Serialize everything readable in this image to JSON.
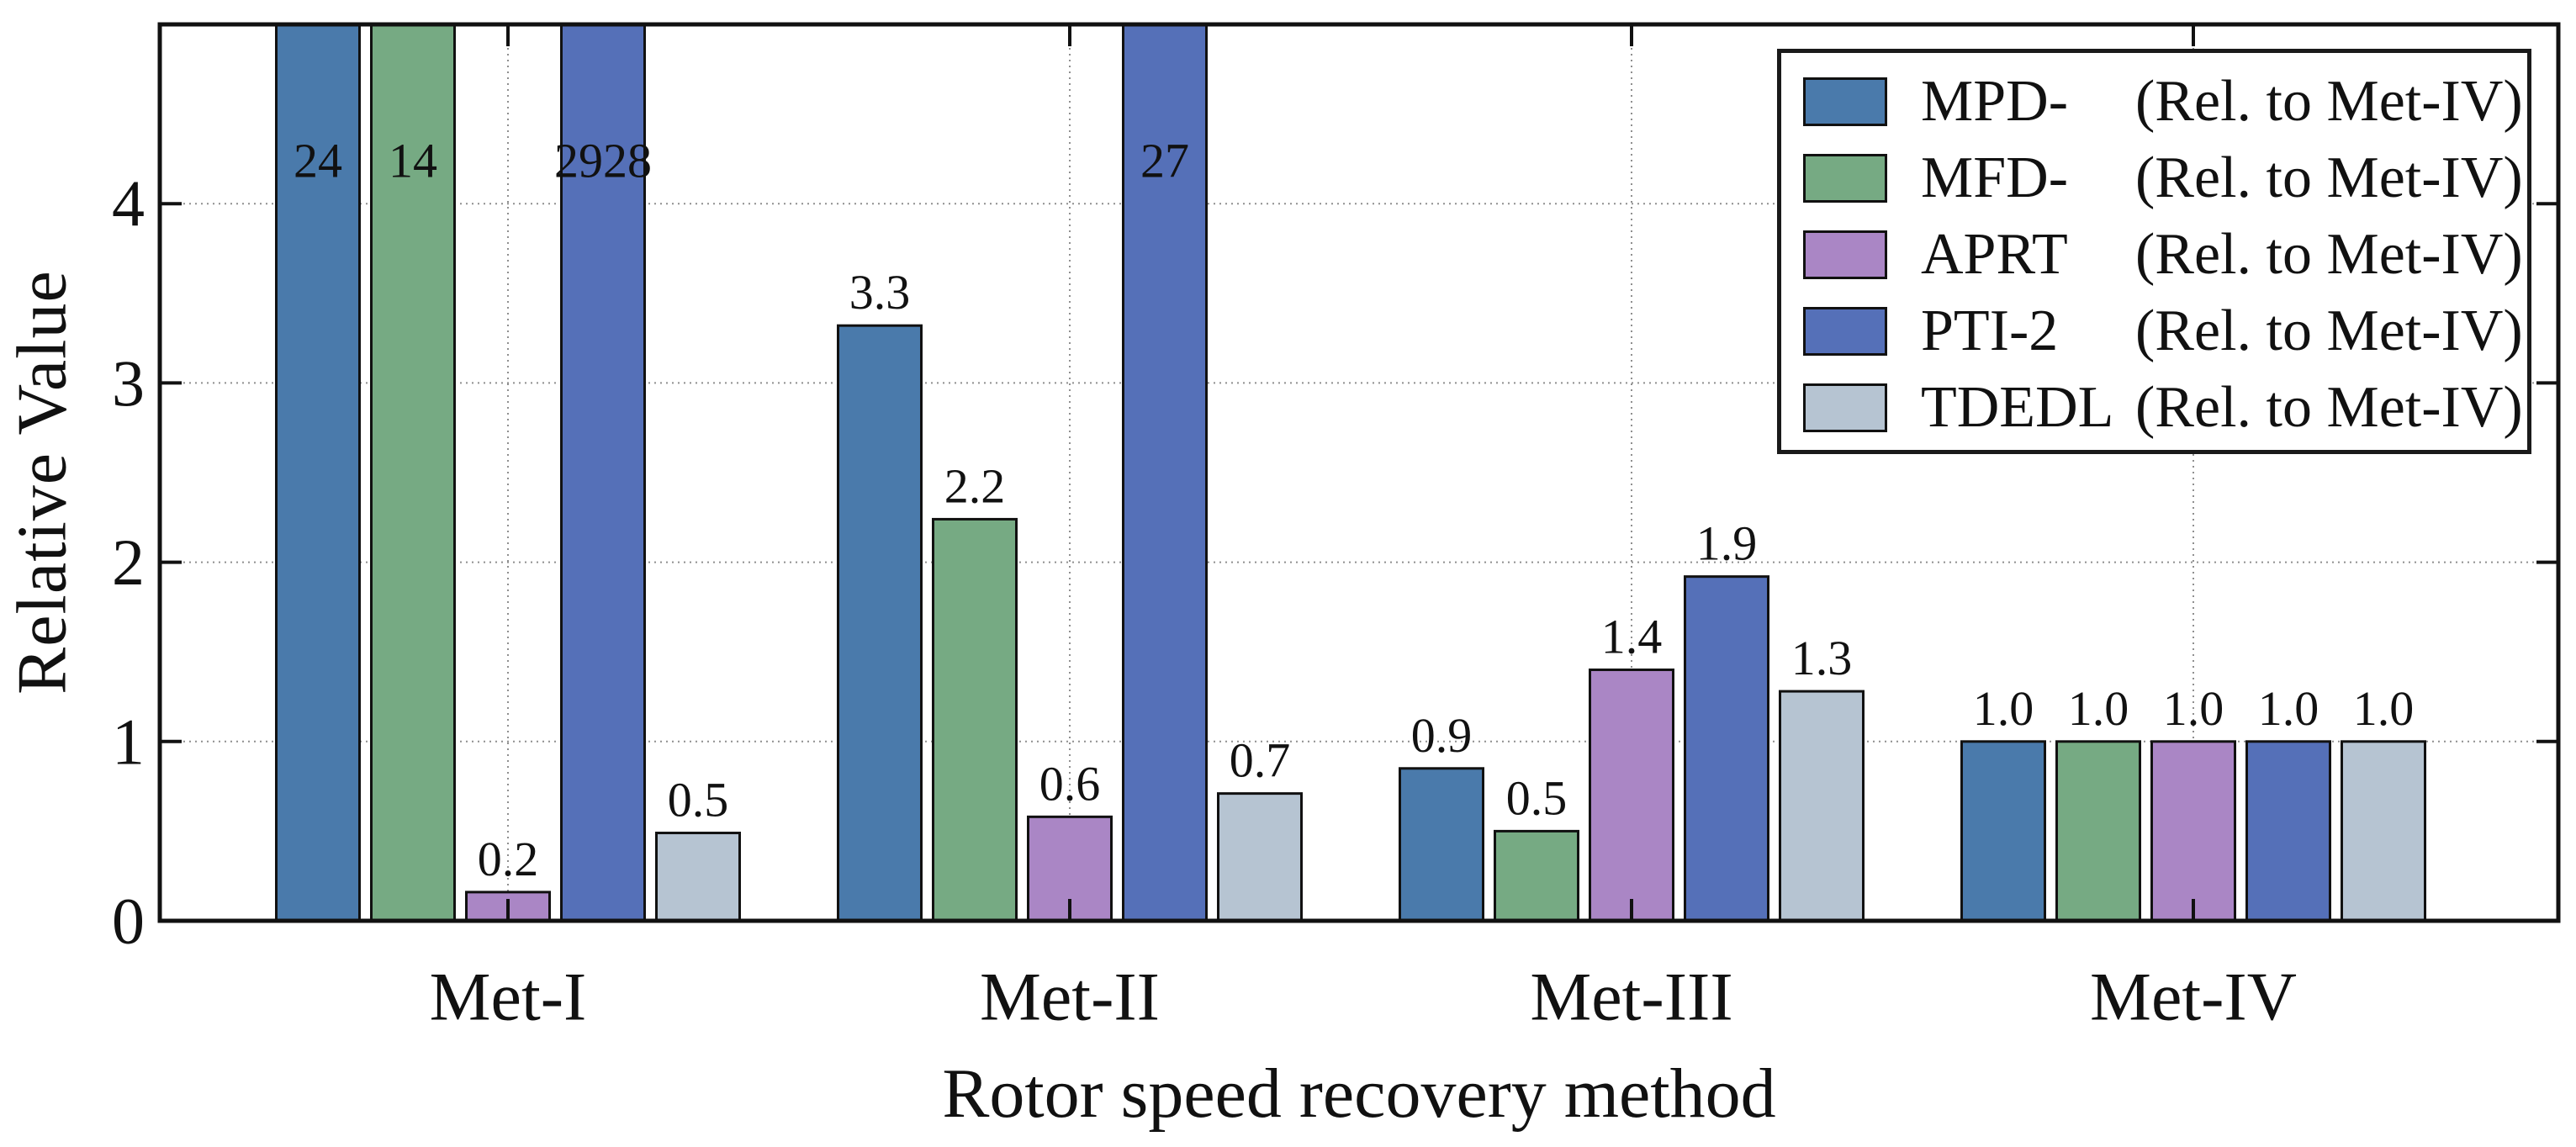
{
  "figure": {
    "x_axis_title": "Rotor speed recovery method",
    "y_axis_title": "Relative Value"
  },
  "chart_data": {
    "type": "bar",
    "title": "",
    "xlabel": "Rotor speed recovery method",
    "ylabel": "Relative Value",
    "categories": [
      "Met-I",
      "Met-II",
      "Met-III",
      "Met-IV"
    ],
    "series": [
      {
        "name": "MPD-",
        "rel_note": "(Rel. to Met-IV)",
        "color": "#4a7aab",
        "values": [
          24,
          3.32,
          0.85,
          1.0
        ],
        "labels": [
          "24",
          "3.3",
          "0.9",
          "1.0"
        ]
      },
      {
        "name": "MFD-",
        "rel_note": "(Rel. to Met-IV)",
        "color": "#76aa83",
        "values": [
          14,
          2.24,
          0.5,
          1.0
        ],
        "labels": [
          "14",
          "2.2",
          "0.5",
          "1.0"
        ]
      },
      {
        "name": "APRT",
        "rel_note": "(Rel. to Met-IV)",
        "color": "#aa86c5",
        "values": [
          0.16,
          0.58,
          1.4,
          1.0
        ],
        "labels": [
          "0.2",
          "0.6",
          "1.4",
          "1.0"
        ]
      },
      {
        "name": "PTI-2",
        "rel_note": "(Rel. to Met-IV)",
        "color": "#5570b8",
        "values": [
          2928,
          27,
          1.92,
          1.0
        ],
        "labels": [
          "2928",
          "27",
          "1.9",
          "1.0"
        ]
      },
      {
        "name": "TDEDL",
        "rel_note": "(Rel. to Met-IV)",
        "color": "#b6c4d2",
        "values": [
          0.49,
          0.71,
          1.28,
          1.0
        ],
        "labels": [
          "0.5",
          "0.7",
          "1.3",
          "1.0"
        ]
      }
    ],
    "ylim": [
      0,
      5
    ],
    "yticks": [
      0,
      1,
      2,
      3,
      4
    ],
    "ytick_labels": [
      "0",
      "1",
      "2",
      "3",
      "4"
    ],
    "grid": true,
    "legend_position": "upper right"
  }
}
